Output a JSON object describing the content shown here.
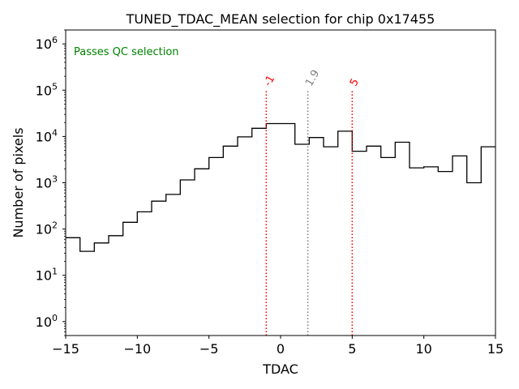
{
  "chart_data": {
    "type": "histogram",
    "title": "TUNED_TDAC_MEAN selection for chip 0x17455",
    "xlabel": "TDAC",
    "ylabel": "Number of pixels",
    "xlim": [
      -15,
      15
    ],
    "ylim": [
      0.5,
      2000000
    ],
    "yscale": "log",
    "grid": false,
    "x_ticks": [
      -15,
      -10,
      -5,
      0,
      5,
      10,
      15
    ],
    "x_tick_labels": [
      "−15",
      "−10",
      "−5",
      "0",
      "5",
      "10",
      "15"
    ],
    "y_ticks": [
      1,
      10,
      100,
      1000,
      10000,
      100000,
      1000000
    ],
    "y_tick_exponents": [
      "0",
      "1",
      "2",
      "3",
      "4",
      "5",
      "6"
    ],
    "y_tick_base": "10",
    "bin_edges": [
      -15,
      -14,
      -13,
      -12,
      -11,
      -10,
      -9,
      -8,
      -7,
      -6,
      -5,
      -4,
      -3,
      -2,
      -1,
      0,
      1,
      2,
      3,
      4,
      5,
      6,
      7,
      8,
      9,
      10,
      11,
      12,
      13,
      14,
      15
    ],
    "counts": [
      65,
      33,
      50,
      72,
      140,
      235,
      400,
      560,
      1150,
      2000,
      3500,
      6200,
      9800,
      15000,
      19000,
      19000,
      6800,
      9500,
      6000,
      13000,
      4800,
      6200,
      3500,
      7500,
      2100,
      2200,
      1750,
      3800,
      1000,
      6000
    ],
    "line_color": "#000000",
    "markers": [
      {
        "x": -1,
        "label": "-1",
        "color": "#ff0000",
        "top": 100000
      },
      {
        "x": 1.9,
        "label": "1.9",
        "color": "#808080",
        "top": 100000
      },
      {
        "x": 5,
        "label": "5",
        "color": "#ff0000",
        "top": 100000
      }
    ],
    "annotation": {
      "text": "Passes QC selection",
      "color": "#008000",
      "position": "top-left"
    }
  }
}
